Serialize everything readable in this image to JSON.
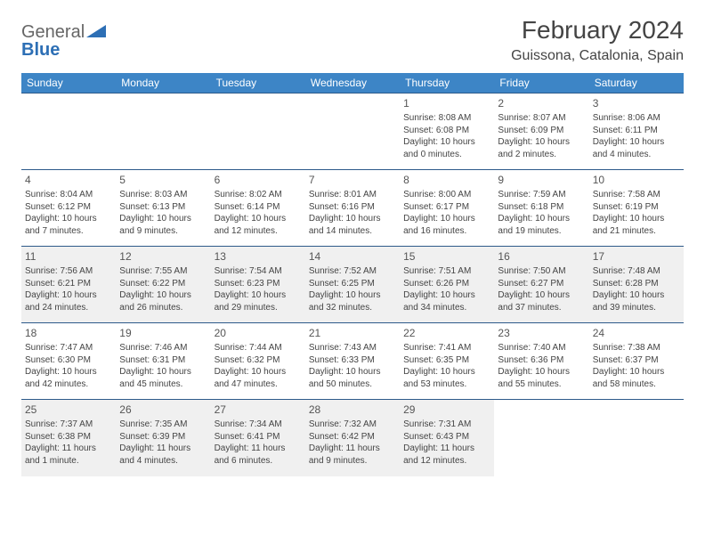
{
  "logo": {
    "part1": "General",
    "part2": "Blue"
  },
  "title": "February 2024",
  "location": "Guissona, Catalonia, Spain",
  "colors": {
    "header_bg": "#3d85c6",
    "header_text": "#ffffff",
    "row_border": "#2d5a8a",
    "shaded_row": "#f0f0f0",
    "text": "#444444",
    "logo_blue": "#2d6fb5"
  },
  "day_headers": [
    "Sunday",
    "Monday",
    "Tuesday",
    "Wednesday",
    "Thursday",
    "Friday",
    "Saturday"
  ],
  "weeks": [
    {
      "shaded": false,
      "days": [
        null,
        null,
        null,
        null,
        {
          "n": "1",
          "sunrise": "Sunrise: 8:08 AM",
          "sunset": "Sunset: 6:08 PM",
          "daylight": "Daylight: 10 hours and 0 minutes."
        },
        {
          "n": "2",
          "sunrise": "Sunrise: 8:07 AM",
          "sunset": "Sunset: 6:09 PM",
          "daylight": "Daylight: 10 hours and 2 minutes."
        },
        {
          "n": "3",
          "sunrise": "Sunrise: 8:06 AM",
          "sunset": "Sunset: 6:11 PM",
          "daylight": "Daylight: 10 hours and 4 minutes."
        }
      ]
    },
    {
      "shaded": false,
      "days": [
        {
          "n": "4",
          "sunrise": "Sunrise: 8:04 AM",
          "sunset": "Sunset: 6:12 PM",
          "daylight": "Daylight: 10 hours and 7 minutes."
        },
        {
          "n": "5",
          "sunrise": "Sunrise: 8:03 AM",
          "sunset": "Sunset: 6:13 PM",
          "daylight": "Daylight: 10 hours and 9 minutes."
        },
        {
          "n": "6",
          "sunrise": "Sunrise: 8:02 AM",
          "sunset": "Sunset: 6:14 PM",
          "daylight": "Daylight: 10 hours and 12 minutes."
        },
        {
          "n": "7",
          "sunrise": "Sunrise: 8:01 AM",
          "sunset": "Sunset: 6:16 PM",
          "daylight": "Daylight: 10 hours and 14 minutes."
        },
        {
          "n": "8",
          "sunrise": "Sunrise: 8:00 AM",
          "sunset": "Sunset: 6:17 PM",
          "daylight": "Daylight: 10 hours and 16 minutes."
        },
        {
          "n": "9",
          "sunrise": "Sunrise: 7:59 AM",
          "sunset": "Sunset: 6:18 PM",
          "daylight": "Daylight: 10 hours and 19 minutes."
        },
        {
          "n": "10",
          "sunrise": "Sunrise: 7:58 AM",
          "sunset": "Sunset: 6:19 PM",
          "daylight": "Daylight: 10 hours and 21 minutes."
        }
      ]
    },
    {
      "shaded": true,
      "days": [
        {
          "n": "11",
          "sunrise": "Sunrise: 7:56 AM",
          "sunset": "Sunset: 6:21 PM",
          "daylight": "Daylight: 10 hours and 24 minutes."
        },
        {
          "n": "12",
          "sunrise": "Sunrise: 7:55 AM",
          "sunset": "Sunset: 6:22 PM",
          "daylight": "Daylight: 10 hours and 26 minutes."
        },
        {
          "n": "13",
          "sunrise": "Sunrise: 7:54 AM",
          "sunset": "Sunset: 6:23 PM",
          "daylight": "Daylight: 10 hours and 29 minutes."
        },
        {
          "n": "14",
          "sunrise": "Sunrise: 7:52 AM",
          "sunset": "Sunset: 6:25 PM",
          "daylight": "Daylight: 10 hours and 32 minutes."
        },
        {
          "n": "15",
          "sunrise": "Sunrise: 7:51 AM",
          "sunset": "Sunset: 6:26 PM",
          "daylight": "Daylight: 10 hours and 34 minutes."
        },
        {
          "n": "16",
          "sunrise": "Sunrise: 7:50 AM",
          "sunset": "Sunset: 6:27 PM",
          "daylight": "Daylight: 10 hours and 37 minutes."
        },
        {
          "n": "17",
          "sunrise": "Sunrise: 7:48 AM",
          "sunset": "Sunset: 6:28 PM",
          "daylight": "Daylight: 10 hours and 39 minutes."
        }
      ]
    },
    {
      "shaded": false,
      "days": [
        {
          "n": "18",
          "sunrise": "Sunrise: 7:47 AM",
          "sunset": "Sunset: 6:30 PM",
          "daylight": "Daylight: 10 hours and 42 minutes."
        },
        {
          "n": "19",
          "sunrise": "Sunrise: 7:46 AM",
          "sunset": "Sunset: 6:31 PM",
          "daylight": "Daylight: 10 hours and 45 minutes."
        },
        {
          "n": "20",
          "sunrise": "Sunrise: 7:44 AM",
          "sunset": "Sunset: 6:32 PM",
          "daylight": "Daylight: 10 hours and 47 minutes."
        },
        {
          "n": "21",
          "sunrise": "Sunrise: 7:43 AM",
          "sunset": "Sunset: 6:33 PM",
          "daylight": "Daylight: 10 hours and 50 minutes."
        },
        {
          "n": "22",
          "sunrise": "Sunrise: 7:41 AM",
          "sunset": "Sunset: 6:35 PM",
          "daylight": "Daylight: 10 hours and 53 minutes."
        },
        {
          "n": "23",
          "sunrise": "Sunrise: 7:40 AM",
          "sunset": "Sunset: 6:36 PM",
          "daylight": "Daylight: 10 hours and 55 minutes."
        },
        {
          "n": "24",
          "sunrise": "Sunrise: 7:38 AM",
          "sunset": "Sunset: 6:37 PM",
          "daylight": "Daylight: 10 hours and 58 minutes."
        }
      ]
    },
    {
      "shaded": true,
      "days": [
        {
          "n": "25",
          "sunrise": "Sunrise: 7:37 AM",
          "sunset": "Sunset: 6:38 PM",
          "daylight": "Daylight: 11 hours and 1 minute."
        },
        {
          "n": "26",
          "sunrise": "Sunrise: 7:35 AM",
          "sunset": "Sunset: 6:39 PM",
          "daylight": "Daylight: 11 hours and 4 minutes."
        },
        {
          "n": "27",
          "sunrise": "Sunrise: 7:34 AM",
          "sunset": "Sunset: 6:41 PM",
          "daylight": "Daylight: 11 hours and 6 minutes."
        },
        {
          "n": "28",
          "sunrise": "Sunrise: 7:32 AM",
          "sunset": "Sunset: 6:42 PM",
          "daylight": "Daylight: 11 hours and 9 minutes."
        },
        {
          "n": "29",
          "sunrise": "Sunrise: 7:31 AM",
          "sunset": "Sunset: 6:43 PM",
          "daylight": "Daylight: 11 hours and 12 minutes."
        },
        null,
        null
      ]
    }
  ]
}
